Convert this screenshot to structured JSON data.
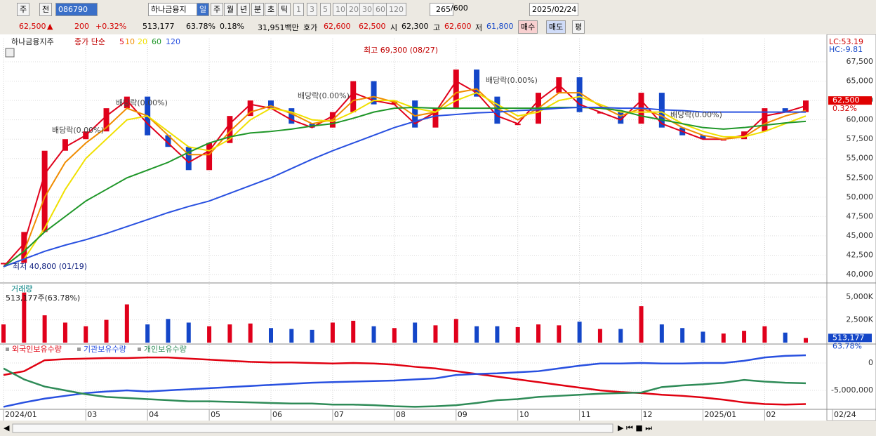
{
  "toolbar": {
    "period": "주",
    "scope": "전",
    "code": "086790",
    "name": "하나금융지",
    "intervals": [
      "일",
      "주",
      "월",
      "년",
      "분",
      "초",
      "틱"
    ],
    "steps": [
      "1",
      "3",
      "5",
      "10",
      "20",
      "30",
      "60",
      "120"
    ],
    "count": "265",
    "max": "/600",
    "date": "2025/02/24"
  },
  "info_bar": {
    "price": "62,500",
    "arrow": "▲",
    "change": "200",
    "change_pct": "+0.32%",
    "volume": "513,177",
    "ratio": "63.78%",
    "turnover": "0.18%",
    "amount": "31,951백만",
    "quote_label": "호가",
    "ask": "62,600",
    "bid": "62,500",
    "open_label": "시",
    "open": "62,300",
    "high_label": "고",
    "high": "62,600",
    "low_label": "저",
    "low": "61,800",
    "buy": "매수",
    "sell": "매도",
    "avg": "평"
  },
  "chart_data": [
    {
      "type": "candlestick",
      "legend_title": "하나금융지주",
      "legend_label": "종가 단순",
      "up_color": "#e0001b",
      "down_color": "#1446c8",
      "categories": [
        "2024/01",
        null,
        null,
        null,
        "03",
        null,
        null,
        "04",
        null,
        null,
        "05",
        null,
        null,
        "06",
        null,
        null,
        "07",
        null,
        null,
        "08",
        null,
        null,
        "09",
        null,
        null,
        "10",
        null,
        null,
        "11",
        null,
        null,
        "12",
        null,
        null,
        "2025/01",
        null,
        null,
        "02",
        null,
        "02/24"
      ],
      "values": [
        41500,
        45500,
        56000,
        57500,
        58500,
        61500,
        63000,
        58000,
        56500,
        53500,
        57000,
        60500,
        62500,
        61500,
        59500,
        59000,
        61000,
        65000,
        62000,
        62500,
        59000,
        61500,
        66500,
        63000,
        59500,
        59500,
        63500,
        65500,
        61000,
        61000,
        59500,
        63500,
        59000,
        58000,
        57500,
        57500,
        58500,
        61500,
        61000,
        62500
      ],
      "series": [
        {
          "name": "5",
          "color": "#e0001b",
          "values": [
            41000,
            44000,
            53000,
            56500,
            58000,
            60500,
            62500,
            59500,
            57000,
            54500,
            56000,
            59500,
            62000,
            61500,
            60000,
            59000,
            60500,
            63500,
            62500,
            62000,
            59500,
            61000,
            65000,
            63500,
            60500,
            59500,
            62500,
            64500,
            62000,
            61000,
            60000,
            62500,
            59500,
            58500,
            57500,
            57500,
            58000,
            60500,
            61000,
            61800
          ]
        },
        {
          "name": "10",
          "color": "#f08c00",
          "values": [
            41000,
            43000,
            50000,
            54500,
            57000,
            59000,
            61500,
            60500,
            58000,
            55500,
            55500,
            58500,
            61000,
            61800,
            60800,
            59500,
            60000,
            62500,
            63000,
            62300,
            60500,
            61000,
            63500,
            64000,
            61500,
            60000,
            61500,
            63500,
            63500,
            61800,
            60500,
            61500,
            60500,
            59000,
            58000,
            57500,
            57800,
            59500,
            60500,
            61200
          ]
        },
        {
          "name": "20",
          "color": "#f0e000",
          "values": [
            41000,
            42000,
            46000,
            51000,
            55000,
            57500,
            60000,
            60500,
            58500,
            56500,
            56000,
            57500,
            60000,
            61500,
            61000,
            60000,
            59800,
            61000,
            62500,
            62500,
            61500,
            61000,
            62500,
            63500,
            62000,
            60500,
            61000,
            62500,
            63000,
            62000,
            61000,
            61000,
            61000,
            59500,
            58500,
            57800,
            57800,
            58500,
            59500,
            60500
          ]
        },
        {
          "name": "60",
          "color": "#1e9628",
          "values": [
            41000,
            43000,
            45500,
            47500,
            49500,
            51000,
            52500,
            53500,
            54500,
            55800,
            57000,
            57800,
            58300,
            58500,
            58800,
            59200,
            59500,
            60200,
            61000,
            61500,
            61600,
            61500,
            61500,
            61500,
            61500,
            61500,
            61500,
            61600,
            61600,
            61500,
            61200,
            60500,
            60000,
            59500,
            59000,
            58800,
            59000,
            59300,
            59600,
            59800
          ]
        },
        {
          "name": "120",
          "color": "#2850e0",
          "values": [
            41000,
            42000,
            43000,
            43800,
            44500,
            45300,
            46200,
            47100,
            48000,
            48800,
            49500,
            50500,
            51500,
            52500,
            53700,
            54900,
            56000,
            57000,
            58000,
            59000,
            59800,
            60500,
            60700,
            60900,
            61000,
            61200,
            61300,
            61500,
            61600,
            61600,
            61500,
            61500,
            61300,
            61200,
            61000,
            61000,
            61000,
            61000,
            61000,
            61000
          ]
        }
      ],
      "ylim": [
        39000,
        70500
      ],
      "yticks": [
        {
          "value": 40000,
          "label": "40,000"
        },
        {
          "value": 42500,
          "label": "42,500"
        },
        {
          "value": 45000,
          "label": "45,000"
        },
        {
          "value": 47500,
          "label": "47,500"
        },
        {
          "value": 50000,
          "label": "50,000"
        },
        {
          "value": 52500,
          "label": "52,500"
        },
        {
          "value": 55000,
          "label": "55,000"
        },
        {
          "value": 57500,
          "label": "57,500"
        },
        {
          "value": 60000,
          "label": "60,000"
        },
        {
          "value": 62500,
          "label": "62,500"
        },
        {
          "value": 65000,
          "label": "65,000"
        },
        {
          "value": 67500,
          "label": "67,500"
        }
      ],
      "annotations": [
        "최고 69,300 (08/27)",
        "최저 40,800 (01/19)",
        "배당락(0.00%)",
        "배당락(0.00%)",
        "배당락(0.00%)",
        "배당락(0.00%)",
        "배당락(0.00%)"
      ],
      "side_labels": [
        "LC:53.19",
        "HC:-9.81"
      ],
      "last_value_label": "62,500",
      "last_change_label": "0.32%",
      "grid": true
    },
    {
      "type": "bar",
      "title": "거래량",
      "subtitle": "513,177주(63.78%)",
      "values": [
        2000000,
        5500000,
        3000000,
        2200000,
        1800000,
        2500000,
        4200000,
        2000000,
        2600000,
        2200000,
        1800000,
        2000000,
        2100000,
        1600000,
        1500000,
        1400000,
        2200000,
        2400000,
        1800000,
        1600000,
        2200000,
        1900000,
        2600000,
        1800000,
        1800000,
        1700000,
        2000000,
        1900000,
        2300000,
        1500000,
        1500000,
        4000000,
        2000000,
        1600000,
        1200000,
        1000000,
        1300000,
        1800000,
        1100000,
        513177
      ],
      "ylim": [
        0,
        6400000
      ],
      "yticks": [
        {
          "value": 2500000,
          "label": "2,500K"
        },
        {
          "value": 5000000,
          "label": "5,000K"
        }
      ],
      "last_value_label": "513,177",
      "last_ratio_label": "63.78%"
    },
    {
      "type": "line",
      "series": [
        {
          "name": "외국인보유수량",
          "color": "#e00010",
          "values": [
            -2200000,
            -1500000,
            500000,
            700000,
            800000,
            900000,
            900000,
            1000000,
            1000000,
            800000,
            600000,
            400000,
            200000,
            100000,
            100000,
            0,
            -100000,
            0,
            -100000,
            -300000,
            -700000,
            -1000000,
            -1500000,
            -2000000,
            -2500000,
            -3000000,
            -3500000,
            -4000000,
            -4500000,
            -5000000,
            -5300000,
            -5500000,
            -5800000,
            -6000000,
            -6300000,
            -6700000,
            -7200000,
            -7500000,
            -7600000,
            -7500000
          ]
        },
        {
          "name": "기관보유수량",
          "color": "#2850e0",
          "values": [
            -8000000,
            -7200000,
            -6500000,
            -6000000,
            -5500000,
            -5200000,
            -5000000,
            -5200000,
            -5000000,
            -4800000,
            -4600000,
            -4400000,
            -4200000,
            -4000000,
            -3800000,
            -3600000,
            -3500000,
            -3400000,
            -3300000,
            -3200000,
            -3000000,
            -2800000,
            -2200000,
            -2000000,
            -1900000,
            -1700000,
            -1500000,
            -1000000,
            -500000,
            -100000,
            -100000,
            0,
            -100000,
            -100000,
            0,
            0,
            400000,
            1000000,
            1300000,
            1400000
          ]
        },
        {
          "name": "개인보유수량",
          "color": "#2e8b57",
          "values": [
            -1000000,
            -3000000,
            -4300000,
            -5000000,
            -5700000,
            -6200000,
            -6400000,
            -6600000,
            -6800000,
            -7000000,
            -7000000,
            -7100000,
            -7200000,
            -7300000,
            -7400000,
            -7400000,
            -7600000,
            -7600000,
            -7700000,
            -7900000,
            -8000000,
            -7900000,
            -7700000,
            -7300000,
            -6800000,
            -6600000,
            -6200000,
            -6000000,
            -5800000,
            -5600000,
            -5500000,
            -5400000,
            -4400000,
            -4100000,
            -3900000,
            -3600000,
            -3100000,
            -3400000,
            -3600000,
            -3700000
          ]
        }
      ],
      "ylim": [
        -8330000,
        3200000
      ],
      "yticks": [
        0,
        {
          "value": -5000000,
          "label": "-5,000,000"
        }
      ]
    }
  ]
}
